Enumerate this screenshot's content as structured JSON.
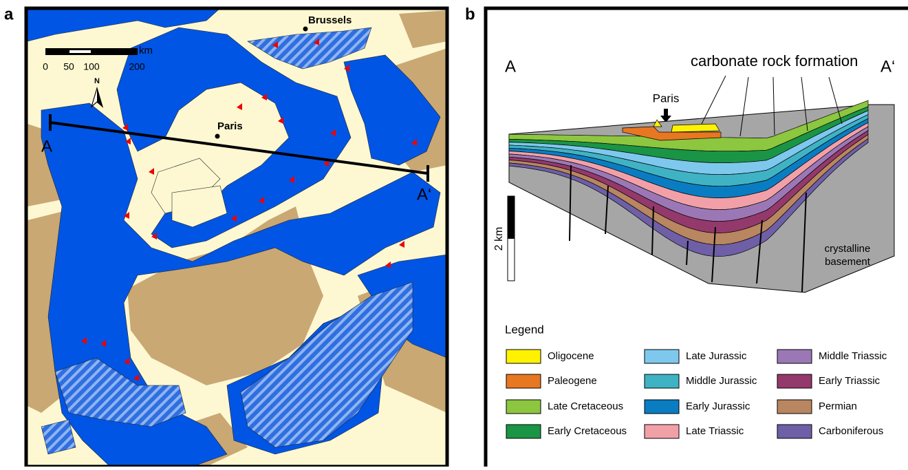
{
  "panel_a": {
    "label": "a",
    "cities": [
      "Brussels",
      "Paris"
    ],
    "scale": {
      "unit": "km",
      "ticks": [
        "0",
        "50",
        "100",
        "200"
      ]
    },
    "north": "N",
    "section": {
      "start": "A",
      "end": "A‘"
    }
  },
  "panel_b": {
    "label": "b",
    "ends": [
      "A",
      "A‘"
    ],
    "annotation": "carbonate rock formation",
    "city": "Paris",
    "scale": "2 km",
    "basement": "crystalline basement",
    "legend": {
      "title": "Legend",
      "items": [
        {
          "label": "Oligocene",
          "color": "#fff200"
        },
        {
          "label": "Paleogene",
          "color": "#e87722"
        },
        {
          "label": "Late Cretaceous",
          "color": "#8dc63f"
        },
        {
          "label": "Early Cretaceous",
          "color": "#1a9445"
        },
        {
          "label": "Late Jurassic",
          "color": "#7ec8ee"
        },
        {
          "label": "Middle Jurassic",
          "color": "#3fb3c4"
        },
        {
          "label": "Early Jurassic",
          "color": "#0a7dc2"
        },
        {
          "label": "Late Triassic",
          "color": "#f2a0a8"
        },
        {
          "label": "Middle Triassic",
          "color": "#9b78b5"
        },
        {
          "label": "Early Triassic",
          "color": "#94396b"
        },
        {
          "label": "Permian",
          "color": "#b88660"
        },
        {
          "label": "Carboniferous",
          "color": "#6e5fa6"
        }
      ]
    }
  }
}
